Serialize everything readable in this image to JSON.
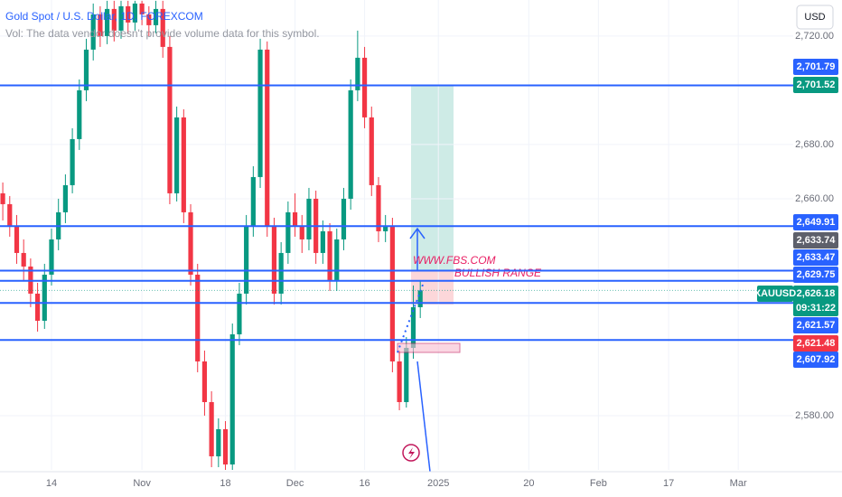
{
  "chart_data": {
    "type": "candlestick",
    "title": "Gold Spot / U.S. Dollar, 1D, FOREXCOM",
    "subtitle": "Vol: The data vendor doesn't provide volume data for this symbol.",
    "currency": "USD",
    "symbol": "XAUUSD",
    "countdown": "09:31:22",
    "annotations": [
      "WWW.FBS.COM",
      "BULLISH RANGE"
    ],
    "up_color": "#089981",
    "down_color": "#f23645",
    "level_color": "#2962ff",
    "xlim": [
      -0.4,
      113.6
    ],
    "xticks": [
      {
        "value": 7,
        "label": "14"
      },
      {
        "value": 20,
        "label": "Nov"
      },
      {
        "value": 32,
        "label": "18"
      },
      {
        "value": 42,
        "label": "Dec"
      },
      {
        "value": 52,
        "label": "16"
      },
      {
        "value": 62.6,
        "label": "2025"
      },
      {
        "value": 75.6,
        "label": "20"
      },
      {
        "value": 85.6,
        "label": "Feb"
      },
      {
        "value": 95.7,
        "label": "17"
      },
      {
        "value": 105.7,
        "label": "Mar"
      }
    ],
    "ylim": [
      2560,
      2733.3
    ],
    "yticks": [
      {
        "value": 2720,
        "label": "2,720.00"
      },
      {
        "value": 2680,
        "label": "2,680.00"
      },
      {
        "value": 2660,
        "label": "2,660.00"
      },
      {
        "value": 2580,
        "label": "2,580.00"
      }
    ],
    "open": [
      2662,
      2658,
      2650,
      2640,
      2635,
      2625,
      2615,
      2632,
      2645,
      2655,
      2665,
      2682,
      2700,
      2715,
      2728,
      2720,
      2730,
      2722,
      2731,
      2725,
      2732,
      2728,
      2724,
      2730,
      2716,
      2662,
      2690,
      2655,
      2632,
      2600,
      2585,
      2565,
      2575,
      2562,
      2610,
      2625,
      2650,
      2668,
      2715,
      2650,
      2625,
      2640,
      2655,
      2650,
      2645,
      2660,
      2640,
      2648,
      2630,
      2645,
      2660,
      2700,
      2712,
      2690,
      2665,
      2648,
      2650,
      2600,
      2585,
      2605,
      2620
    ],
    "high": [
      2666,
      2661,
      2654,
      2645,
      2638,
      2629,
      2636,
      2649,
      2660,
      2669,
      2686,
      2704,
      2719,
      2732,
      2731,
      2733,
      2733,
      2733,
      2733,
      2733,
      2733,
      2731,
      2733,
      2733,
      2720,
      2694,
      2693,
      2658,
      2636,
      2604,
      2589,
      2579,
      2578,
      2614,
      2629,
      2654,
      2672,
      2719,
      2718,
      2653,
      2644,
      2659,
      2662,
      2654,
      2664,
      2663,
      2652,
      2651,
      2649,
      2664,
      2704,
      2722,
      2716,
      2694,
      2668,
      2654,
      2653,
      2604,
      2609,
      2628,
      2630
    ],
    "low": [
      2652,
      2646,
      2636,
      2630,
      2620,
      2611,
      2612,
      2628,
      2641,
      2651,
      2662,
      2678,
      2696,
      2711,
      2716,
      2717,
      2718,
      2719,
      2721,
      2722,
      2724,
      2720,
      2721,
      2712,
      2658,
      2659,
      2651,
      2628,
      2596,
      2580,
      2561,
      2561,
      2560,
      2560,
      2606,
      2621,
      2646,
      2664,
      2646,
      2621,
      2621,
      2636,
      2646,
      2640,
      2641,
      2636,
      2636,
      2626,
      2626,
      2641,
      2656,
      2696,
      2686,
      2661,
      2644,
      2644,
      2596,
      2582,
      2583,
      2601,
      2616
    ],
    "close": [
      2658,
      2650,
      2640,
      2635,
      2625,
      2615,
      2632,
      2645,
      2655,
      2665,
      2682,
      2700,
      2715,
      2728,
      2720,
      2730,
      2722,
      2731,
      2725,
      2732,
      2728,
      2724,
      2730,
      2716,
      2662,
      2690,
      2655,
      2632,
      2600,
      2585,
      2565,
      2575,
      2562,
      2610,
      2625,
      2650,
      2668,
      2715,
      2650,
      2625,
      2640,
      2655,
      2650,
      2645,
      2660,
      2640,
      2648,
      2630,
      2645,
      2660,
      2700,
      2712,
      2690,
      2665,
      2648,
      2650,
      2600,
      2585,
      2605,
      2620,
      2626.18
    ],
    "levels": [
      2701.79,
      2649.91,
      2633.47,
      2629.75,
      2621.57,
      2607.92
    ],
    "price_labels": [
      {
        "value": 2701.79,
        "label": "2,701.79",
        "color": "#2962ff"
      },
      {
        "value": 2701.52,
        "label": "2,701.52",
        "color": "#089981"
      },
      {
        "value": 2649.91,
        "label": "2,649.91",
        "color": "#2962ff"
      },
      {
        "value": 2633.74,
        "label": "2,633.74",
        "color": "#5d606b"
      },
      {
        "value": 2633.47,
        "label": "2,633.47",
        "color": "#2962ff"
      },
      {
        "value": 2629.75,
        "label": "2,629.75",
        "color": "#2962ff"
      },
      {
        "value": 2626.18,
        "label": "2,626.18",
        "color": "#089981"
      },
      {
        "value": 2621.57,
        "label": "2,621.57",
        "color": "#2962ff"
      },
      {
        "value": 2621.48,
        "label": "2,621.48",
        "color": "#f23645"
      },
      {
        "value": 2607.92,
        "label": "2,607.92",
        "color": "#2962ff"
      }
    ]
  }
}
